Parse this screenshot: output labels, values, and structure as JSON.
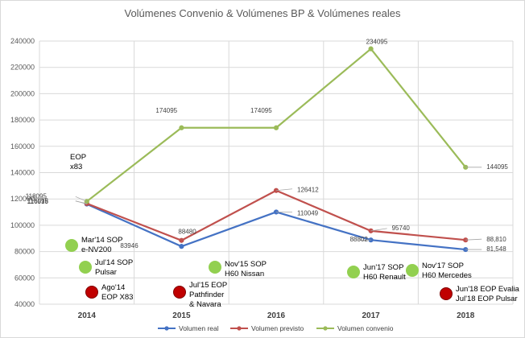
{
  "chart_data": {
    "type": "line",
    "title": "Volúmenes Convenio & Volúmenes BP & Volúmenes reales",
    "categories": [
      "2014",
      "2015",
      "2016",
      "2017",
      "2018"
    ],
    "ylim": [
      40000,
      240000
    ],
    "yticks": [
      "40000",
      "60000",
      "80000",
      "100000",
      "120000",
      "140000",
      "160000",
      "180000",
      "200000",
      "220000",
      "240000"
    ],
    "grid": true,
    "legend_position": "bottom",
    "series": [
      {
        "name": "Volumen real",
        "color": "#4472c4",
        "values": [
          116095,
          83946,
          110049,
          88802,
          81548
        ],
        "labels": [
          "116095",
          "83946",
          "110049",
          "88802",
          "81,548"
        ]
      },
      {
        "name": "Volumen previsto",
        "color": "#c0504d",
        "values": [
          116518,
          88480,
          126412,
          95740,
          88810
        ],
        "labels": [
          "116518",
          "88480",
          "126412",
          "95740",
          "88,810"
        ]
      },
      {
        "name": "Volumen convenio",
        "color": "#9bbb59",
        "values": [
          118095,
          174095,
          174095,
          234095,
          144095
        ],
        "labels": [
          "118095",
          "174095",
          "174095",
          "234095",
          "144095"
        ]
      }
    ],
    "annotations": [
      {
        "id": "eop-x83",
        "lines": [
          "EOP",
          "x83"
        ],
        "marker": "none"
      },
      {
        "id": "mar14",
        "lines": [
          "Mar'14 SOP",
          "e-NV200"
        ],
        "marker": "green"
      },
      {
        "id": "jul14",
        "lines": [
          "Jul'14 SOP",
          "Pulsar"
        ],
        "marker": "green"
      },
      {
        "id": "ago14",
        "lines": [
          "Ago'14",
          "EOP X83"
        ],
        "marker": "red"
      },
      {
        "id": "jul15",
        "lines": [
          "Jul'15 EOP",
          "Pathfinder",
          "& Navara"
        ],
        "marker": "red"
      },
      {
        "id": "nov15",
        "lines": [
          "Nov'15 SOP",
          "H60 Nissan"
        ],
        "marker": "green"
      },
      {
        "id": "jun17",
        "lines": [
          "Jun'17 SOP",
          "H60 Renault"
        ],
        "marker": "green"
      },
      {
        "id": "nov17",
        "lines": [
          "Nov'17 SOP",
          "H60 Mercedes"
        ],
        "marker": "green"
      },
      {
        "id": "jun18",
        "lines": [
          "Jun'18 EOP Evalia",
          "Jul'18 EOP Pulsar"
        ],
        "marker": "red"
      }
    ],
    "marker_colors": {
      "green": "#92d050",
      "red": "#c00000"
    }
  }
}
